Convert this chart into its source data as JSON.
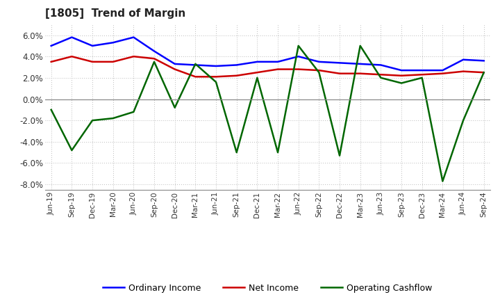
{
  "title": "[1805]  Trend of Margin",
  "x_labels": [
    "Jun-19",
    "Sep-19",
    "Dec-19",
    "Mar-20",
    "Jun-20",
    "Sep-20",
    "Dec-20",
    "Mar-21",
    "Jun-21",
    "Sep-21",
    "Dec-21",
    "Mar-22",
    "Jun-22",
    "Sep-22",
    "Dec-22",
    "Mar-23",
    "Jun-23",
    "Sep-23",
    "Dec-23",
    "Mar-24",
    "Jun-24",
    "Sep-24"
  ],
  "ordinary_income": [
    5.0,
    5.8,
    5.0,
    5.3,
    5.8,
    4.5,
    3.3,
    3.2,
    3.1,
    3.2,
    3.5,
    3.5,
    4.0,
    3.5,
    3.4,
    3.3,
    3.2,
    2.7,
    2.7,
    2.7,
    3.7,
    3.6
  ],
  "net_income": [
    3.5,
    4.0,
    3.5,
    3.5,
    4.0,
    3.8,
    2.8,
    2.1,
    2.1,
    2.2,
    2.5,
    2.8,
    2.8,
    2.7,
    2.4,
    2.4,
    2.3,
    2.2,
    2.3,
    2.4,
    2.6,
    2.5
  ],
  "operating_cashflow": [
    -1.0,
    -4.8,
    -2.0,
    -1.8,
    -1.2,
    3.5,
    -0.8,
    3.3,
    1.6,
    -5.0,
    2.0,
    -5.0,
    5.0,
    2.5,
    -5.3,
    5.0,
    2.0,
    1.5,
    2.0,
    -7.7,
    -2.0,
    2.5
  ],
  "colors": {
    "ordinary_income": "#0000ff",
    "net_income": "#cc0000",
    "operating_cashflow": "#006600"
  },
  "ylim": [
    -8.5,
    7.0
  ],
  "yticks": [
    -8.0,
    -6.0,
    -4.0,
    -2.0,
    0.0,
    2.0,
    4.0,
    6.0
  ],
  "background_color": "#ffffff",
  "grid_color": "#bbbbbb",
  "legend_labels": [
    "Ordinary Income",
    "Net Income",
    "Operating Cashflow"
  ]
}
